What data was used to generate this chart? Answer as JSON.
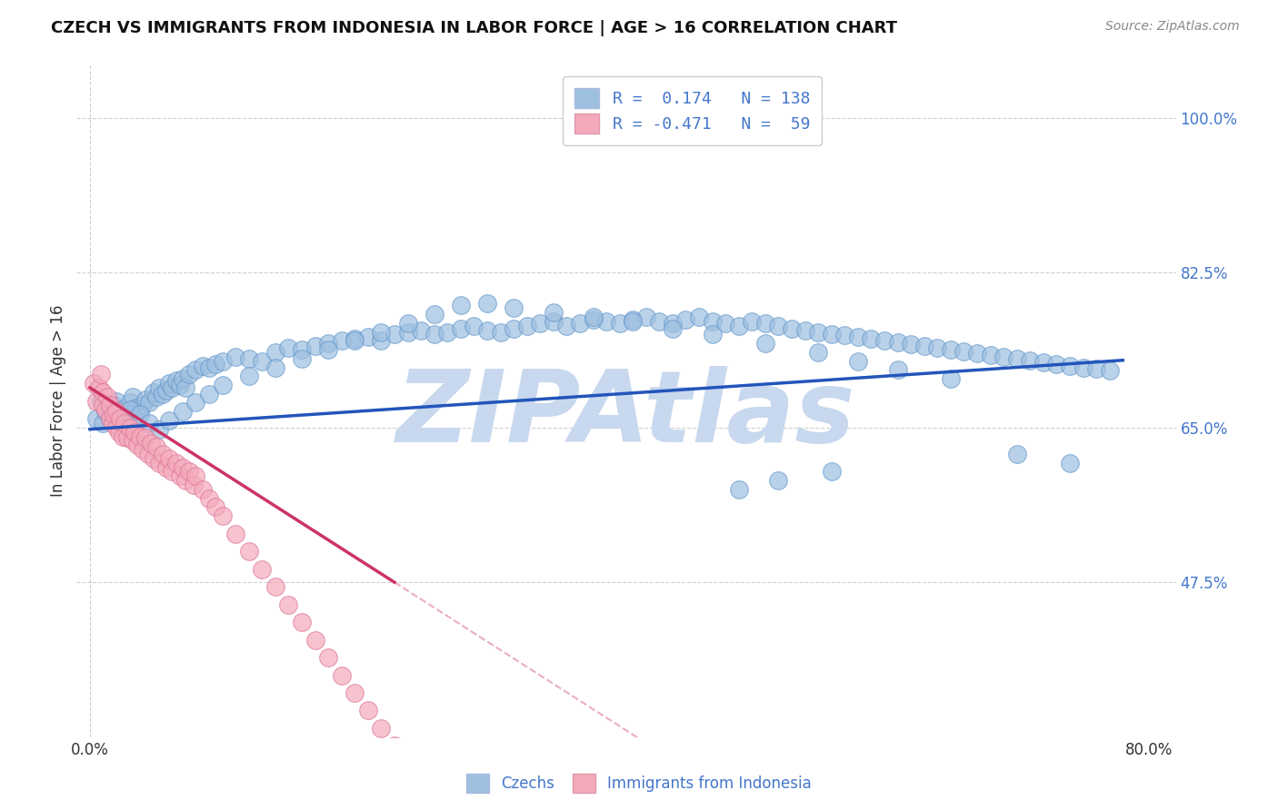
{
  "title": "CZECH VS IMMIGRANTS FROM INDONESIA IN LABOR FORCE | AGE > 16 CORRELATION CHART",
  "source_text": "Source: ZipAtlas.com",
  "ylabel": "In Labor Force | Age > 16",
  "xlim": [
    -0.01,
    0.82
  ],
  "ylim": [
    0.3,
    1.06
  ],
  "ytick_positions": [
    0.475,
    0.65,
    0.825,
    1.0
  ],
  "ytick_labels": [
    "47.5%",
    "65.0%",
    "82.5%",
    "100.0%"
  ],
  "blue_R": 0.174,
  "blue_N": 138,
  "pink_R": -0.471,
  "pink_N": 59,
  "blue_dot_color": "#9dbfe0",
  "blue_dot_edge": "#6699cc",
  "pink_dot_color": "#f4aabb",
  "pink_dot_edge": "#dd7799",
  "blue_line_color": "#2255bb",
  "pink_line_color": "#cc3366",
  "background_color": "#ffffff",
  "grid_color": "#bbbbbb",
  "watermark": "ZIPAtlas",
  "watermark_color": "#c8d8ee",
  "legend_label_blue": "Czechs",
  "legend_label_pink": "Immigrants from Indonesia",
  "blue_x": [
    0.005,
    0.01,
    0.012,
    0.015,
    0.018,
    0.02,
    0.022,
    0.025,
    0.028,
    0.03,
    0.032,
    0.035,
    0.038,
    0.04,
    0.042,
    0.045,
    0.048,
    0.05,
    0.052,
    0.055,
    0.058,
    0.06,
    0.062,
    0.065,
    0.068,
    0.07,
    0.072,
    0.075,
    0.08,
    0.085,
    0.09,
    0.095,
    0.1,
    0.11,
    0.12,
    0.13,
    0.14,
    0.15,
    0.16,
    0.17,
    0.18,
    0.19,
    0.2,
    0.21,
    0.22,
    0.23,
    0.24,
    0.25,
    0.26,
    0.27,
    0.28,
    0.29,
    0.3,
    0.31,
    0.32,
    0.33,
    0.34,
    0.35,
    0.36,
    0.37,
    0.38,
    0.39,
    0.4,
    0.41,
    0.42,
    0.43,
    0.44,
    0.45,
    0.46,
    0.47,
    0.48,
    0.49,
    0.5,
    0.51,
    0.52,
    0.53,
    0.54,
    0.55,
    0.56,
    0.57,
    0.58,
    0.59,
    0.6,
    0.61,
    0.62,
    0.63,
    0.64,
    0.65,
    0.66,
    0.67,
    0.68,
    0.69,
    0.7,
    0.71,
    0.72,
    0.73,
    0.74,
    0.75,
    0.76,
    0.77,
    0.008,
    0.015,
    0.022,
    0.03,
    0.038,
    0.045,
    0.052,
    0.06,
    0.07,
    0.08,
    0.09,
    0.1,
    0.12,
    0.14,
    0.16,
    0.18,
    0.2,
    0.22,
    0.24,
    0.26,
    0.28,
    0.3,
    0.32,
    0.35,
    0.38,
    0.41,
    0.44,
    0.47,
    0.51,
    0.55,
    0.58,
    0.61,
    0.65,
    0.7,
    0.74,
    0.52,
    0.49,
    0.56
  ],
  "blue_y": [
    0.66,
    0.655,
    0.668,
    0.672,
    0.675,
    0.68,
    0.665,
    0.67,
    0.658,
    0.678,
    0.685,
    0.672,
    0.669,
    0.675,
    0.682,
    0.678,
    0.69,
    0.685,
    0.695,
    0.688,
    0.692,
    0.7,
    0.695,
    0.703,
    0.698,
    0.705,
    0.695,
    0.71,
    0.715,
    0.72,
    0.718,
    0.722,
    0.725,
    0.73,
    0.728,
    0.725,
    0.735,
    0.74,
    0.738,
    0.742,
    0.745,
    0.748,
    0.75,
    0.752,
    0.748,
    0.755,
    0.758,
    0.76,
    0.755,
    0.758,
    0.762,
    0.765,
    0.76,
    0.758,
    0.762,
    0.765,
    0.768,
    0.77,
    0.765,
    0.768,
    0.772,
    0.77,
    0.768,
    0.772,
    0.775,
    0.77,
    0.768,
    0.772,
    0.775,
    0.77,
    0.768,
    0.765,
    0.77,
    0.768,
    0.765,
    0.762,
    0.76,
    0.758,
    0.756,
    0.754,
    0.752,
    0.75,
    0.748,
    0.746,
    0.744,
    0.742,
    0.74,
    0.738,
    0.736,
    0.734,
    0.732,
    0.73,
    0.728,
    0.726,
    0.724,
    0.722,
    0.72,
    0.718,
    0.716,
    0.714,
    0.68,
    0.66,
    0.65,
    0.67,
    0.665,
    0.655,
    0.648,
    0.658,
    0.668,
    0.678,
    0.688,
    0.698,
    0.708,
    0.718,
    0.728,
    0.738,
    0.748,
    0.758,
    0.768,
    0.778,
    0.788,
    0.79,
    0.785,
    0.78,
    0.775,
    0.77,
    0.762,
    0.755,
    0.745,
    0.735,
    0.725,
    0.715,
    0.705,
    0.62,
    0.61,
    0.59,
    0.58,
    0.6
  ],
  "pink_x": [
    0.003,
    0.005,
    0.007,
    0.008,
    0.01,
    0.01,
    0.012,
    0.013,
    0.015,
    0.015,
    0.017,
    0.018,
    0.02,
    0.02,
    0.022,
    0.023,
    0.025,
    0.026,
    0.028,
    0.03,
    0.032,
    0.034,
    0.036,
    0.038,
    0.04,
    0.042,
    0.044,
    0.046,
    0.048,
    0.05,
    0.052,
    0.055,
    0.058,
    0.06,
    0.062,
    0.065,
    0.068,
    0.07,
    0.072,
    0.075,
    0.078,
    0.08,
    0.085,
    0.09,
    0.095,
    0.1,
    0.11,
    0.12,
    0.13,
    0.14,
    0.15,
    0.16,
    0.17,
    0.18,
    0.19,
    0.2,
    0.21,
    0.22,
    0.23
  ],
  "pink_y": [
    0.7,
    0.68,
    0.695,
    0.71,
    0.675,
    0.69,
    0.67,
    0.685,
    0.66,
    0.675,
    0.655,
    0.665,
    0.65,
    0.668,
    0.645,
    0.66,
    0.64,
    0.655,
    0.638,
    0.65,
    0.635,
    0.645,
    0.63,
    0.64,
    0.625,
    0.638,
    0.62,
    0.632,
    0.615,
    0.628,
    0.61,
    0.62,
    0.605,
    0.615,
    0.6,
    0.61,
    0.595,
    0.605,
    0.59,
    0.6,
    0.585,
    0.595,
    0.58,
    0.57,
    0.56,
    0.55,
    0.53,
    0.51,
    0.49,
    0.47,
    0.45,
    0.43,
    0.41,
    0.39,
    0.37,
    0.35,
    0.33,
    0.31,
    0.29
  ],
  "blue_line_x0": 0.0,
  "blue_line_y0": 0.648,
  "blue_line_x1": 0.78,
  "blue_line_y1": 0.726,
  "pink_line_x0": 0.0,
  "pink_line_y0": 0.695,
  "pink_line_x1": 0.23,
  "pink_line_y1": 0.475
}
